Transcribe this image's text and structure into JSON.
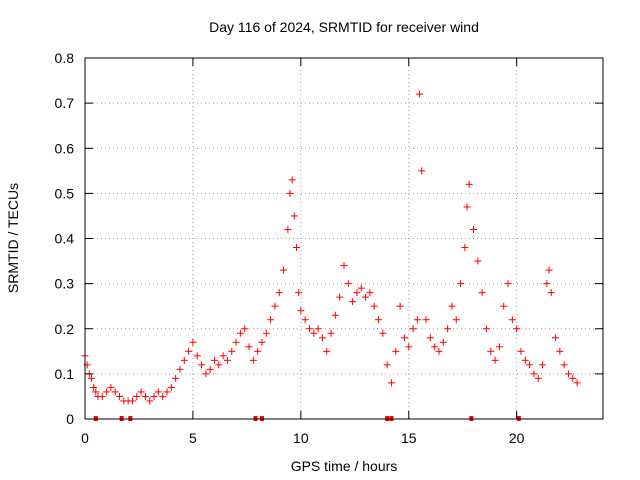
{
  "chart_data": {
    "type": "scatter",
    "title": "Day 116 of 2024, SRMTID for receiver wind",
    "xlabel": "GPS time / hours",
    "ylabel": "SRMTID / TECUs",
    "xlim": [
      0,
      24
    ],
    "ylim": [
      0,
      0.8
    ],
    "x_ticks": [
      0,
      5,
      10,
      15,
      20
    ],
    "x_tick_labels": [
      "0",
      "5",
      "10",
      "15",
      "20"
    ],
    "y_ticks": [
      0,
      0.1,
      0.2,
      0.3,
      0.4,
      0.5,
      0.6,
      0.7,
      0.8
    ],
    "y_tick_labels": [
      "0",
      "0.1",
      "0.2",
      "0.3",
      "0.4",
      "0.5",
      "0.6",
      "0.7",
      "0.8"
    ],
    "grid": true,
    "legend": "none",
    "marker": "plus",
    "color": "#ff0000",
    "bottom_markers_x": [
      0.5,
      1.7,
      2.1,
      7.9,
      8.2,
      14.0,
      14.2,
      17.9,
      20.1
    ],
    "series": [
      {
        "name": "SRMTID",
        "x": [
          0.0,
          0.1,
          0.2,
          0.3,
          0.4,
          0.5,
          0.6,
          0.8,
          1.0,
          1.2,
          1.4,
          1.6,
          1.8,
          2.0,
          2.2,
          2.4,
          2.6,
          2.8,
          3.0,
          3.2,
          3.4,
          3.6,
          3.8,
          4.0,
          4.2,
          4.4,
          4.6,
          4.8,
          5.0,
          5.2,
          5.4,
          5.6,
          5.8,
          6.0,
          6.2,
          6.4,
          6.6,
          6.8,
          7.0,
          7.2,
          7.4,
          7.6,
          7.8,
          8.0,
          8.2,
          8.4,
          8.6,
          8.8,
          9.0,
          9.2,
          9.4,
          9.5,
          9.6,
          9.7,
          9.8,
          9.9,
          10.0,
          10.2,
          10.4,
          10.6,
          10.8,
          11.0,
          11.2,
          11.4,
          11.6,
          11.8,
          12.0,
          12.2,
          12.4,
          12.6,
          12.8,
          13.0,
          13.2,
          13.4,
          13.6,
          13.8,
          14.0,
          14.2,
          14.4,
          14.6,
          14.8,
          15.0,
          15.2,
          15.4,
          15.5,
          15.6,
          15.8,
          16.0,
          16.2,
          16.4,
          16.6,
          16.8,
          17.0,
          17.2,
          17.4,
          17.6,
          17.7,
          17.8,
          18.0,
          18.2,
          18.4,
          18.6,
          18.8,
          19.0,
          19.2,
          19.4,
          19.6,
          19.8,
          20.0,
          20.2,
          20.4,
          20.6,
          20.8,
          21.0,
          21.2,
          21.4,
          21.5,
          21.6,
          21.8,
          22.0,
          22.2,
          22.4,
          22.6,
          22.8
        ],
        "y": [
          0.14,
          0.12,
          0.1,
          0.09,
          0.07,
          0.06,
          0.05,
          0.05,
          0.06,
          0.07,
          0.06,
          0.05,
          0.04,
          0.04,
          0.04,
          0.05,
          0.06,
          0.05,
          0.04,
          0.05,
          0.06,
          0.05,
          0.06,
          0.07,
          0.09,
          0.11,
          0.13,
          0.15,
          0.17,
          0.14,
          0.12,
          0.1,
          0.11,
          0.13,
          0.12,
          0.14,
          0.13,
          0.15,
          0.17,
          0.19,
          0.2,
          0.16,
          0.13,
          0.15,
          0.17,
          0.19,
          0.22,
          0.25,
          0.28,
          0.33,
          0.42,
          0.5,
          0.53,
          0.45,
          0.38,
          0.28,
          0.24,
          0.22,
          0.2,
          0.19,
          0.2,
          0.18,
          0.15,
          0.19,
          0.23,
          0.27,
          0.34,
          0.3,
          0.26,
          0.28,
          0.29,
          0.27,
          0.28,
          0.25,
          0.22,
          0.19,
          0.12,
          0.08,
          0.15,
          0.25,
          0.18,
          0.16,
          0.2,
          0.22,
          0.72,
          0.55,
          0.22,
          0.18,
          0.16,
          0.15,
          0.17,
          0.2,
          0.25,
          0.22,
          0.3,
          0.38,
          0.47,
          0.52,
          0.42,
          0.35,
          0.28,
          0.2,
          0.15,
          0.13,
          0.16,
          0.25,
          0.3,
          0.22,
          0.2,
          0.15,
          0.13,
          0.12,
          0.1,
          0.09,
          0.12,
          0.3,
          0.33,
          0.28,
          0.18,
          0.15,
          0.12,
          0.1,
          0.09,
          0.08
        ]
      }
    ]
  }
}
